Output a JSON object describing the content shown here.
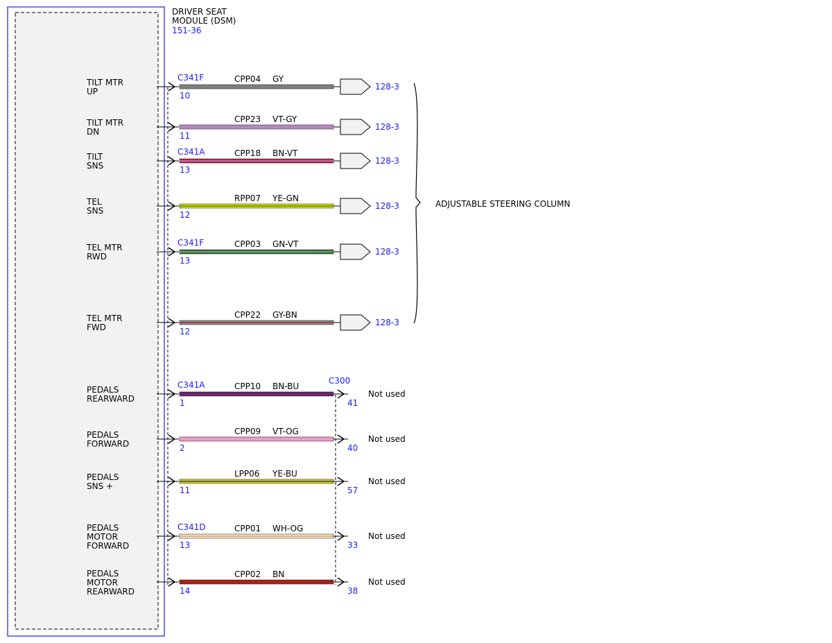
{
  "module": {
    "name_line1": "DRIVER SEAT",
    "name_line2": "MODULE (DSM)",
    "ref": "151-36"
  },
  "steering_column_label": "ADJUSTABLE STEERING COLUMN",
  "end_connector": "C300",
  "colors": {
    "frame": "#1a1aff",
    "ref_text": "#1a1aff",
    "module_fill": "#f2f2f2"
  },
  "circuits": [
    {
      "pin_label": [
        "TILT MTR",
        "UP"
      ],
      "connector": "C341F",
      "pin": "10",
      "circuit": "CPP04",
      "color_code": "GY",
      "base": "#7f7f7f",
      "stripe": null,
      "dest": "128-3",
      "end_pin": null
    },
    {
      "pin_label": [
        "TILT MTR",
        "DN"
      ],
      "connector": null,
      "pin": "11",
      "circuit": "CPP23",
      "color_code": "VT-GY",
      "base": "#c77fd3",
      "stripe": "#9a9a9a",
      "dest": "128-3",
      "end_pin": null
    },
    {
      "pin_label": [
        "TILT",
        "SNS"
      ],
      "connector": "C341A",
      "pin": "13",
      "circuit": "CPP18",
      "color_code": "BN-VT",
      "base": "#b0283c",
      "stripe": "#c77fd3",
      "dest": "128-3",
      "end_pin": null
    },
    {
      "pin_label": [
        "TEL",
        "SNS"
      ],
      "connector": null,
      "pin": "12",
      "circuit": "RPP07",
      "color_code": "YE-GN",
      "base": "#e0e000",
      "stripe": "#3a8a2a",
      "dest": "128-3",
      "end_pin": null
    },
    {
      "pin_label": [
        "TEL MTR",
        "RWD"
      ],
      "connector": "C341F",
      "pin": "13",
      "circuit": "CPP03",
      "color_code": "GN-VT",
      "base": "#1f7a1f",
      "stripe": "#c77fd3",
      "dest": "128-3",
      "end_pin": null
    },
    {
      "pin_label": [
        "TEL MTR",
        "FWD"
      ],
      "connector": null,
      "pin": "12",
      "circuit": "CPP22",
      "color_code": "GY-BN",
      "base": "#8a8a8a",
      "stripe": "#a0323a",
      "dest": "128-3",
      "end_pin": null
    },
    {
      "pin_label": [
        "PEDALS",
        "REARWARD"
      ],
      "connector": "C341A",
      "pin": "1",
      "circuit": "CPP10",
      "color_code": "BN-BU",
      "base": "#7a1a4a",
      "stripe": "#3a3aaa",
      "dest": "Not used",
      "end_pin": "41"
    },
    {
      "pin_label": [
        "PEDALS",
        "FORWARD"
      ],
      "connector": null,
      "pin": "2",
      "circuit": "CPP09",
      "color_code": "VT-OG",
      "base": "#f09ac4",
      "stripe": null,
      "dest": "Not used",
      "end_pin": "40"
    },
    {
      "pin_label": [
        "PEDALS",
        "SNS +"
      ],
      "connector": null,
      "pin": "11",
      "circuit": "LPP06",
      "color_code": "YE-BU",
      "base": "#d8d800",
      "stripe": "#3a3a7a",
      "dest": "Not used",
      "end_pin": "57"
    },
    {
      "pin_label": [
        "PEDALS",
        "MOTOR",
        "FORWARD"
      ],
      "connector": "C341D",
      "pin": "13",
      "circuit": "CPP01",
      "color_code": "WH-OG",
      "base": "#f4ead0",
      "stripe": "#e0a060",
      "dest": "Not used",
      "end_pin": "33"
    },
    {
      "pin_label": [
        "PEDALS",
        "MOTOR",
        "REARWARD"
      ],
      "connector": null,
      "pin": "14",
      "circuit": "CPP02",
      "color_code": "BN",
      "base": "#a8201a",
      "stripe": null,
      "dest": "Not used",
      "end_pin": "38"
    }
  ]
}
